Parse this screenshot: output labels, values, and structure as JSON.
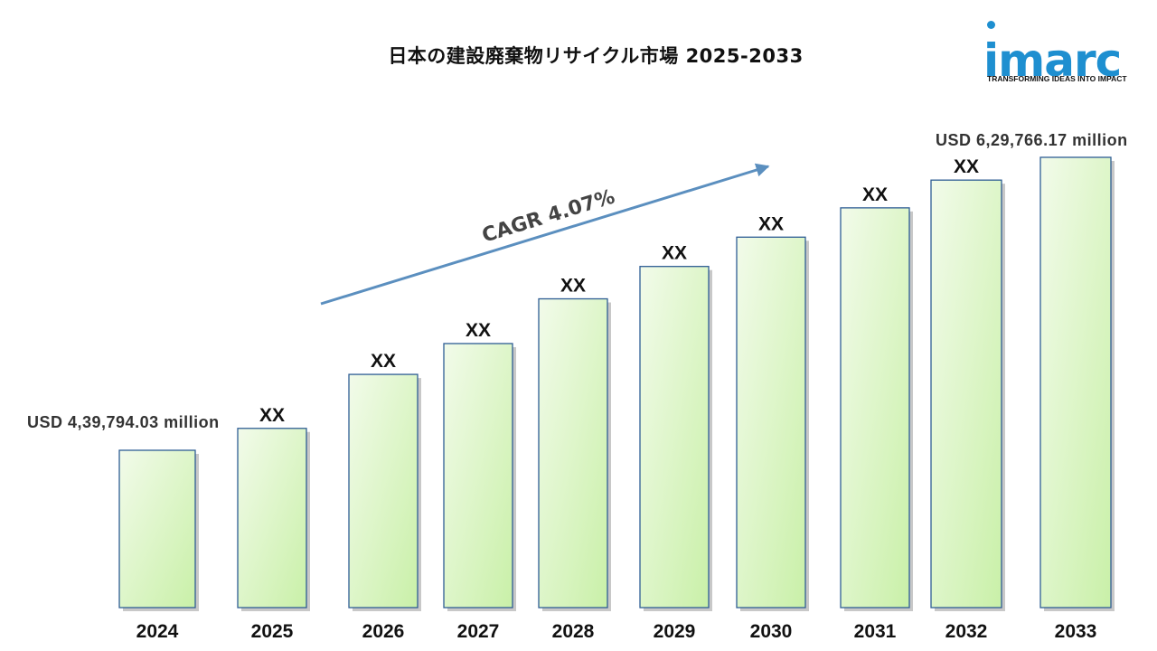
{
  "title": "日本の建設廃棄物リサイクル市場  2025-2033",
  "logo": {
    "name": "imarc",
    "tagline": "TRANSFORMING IDEAS INTO IMPACT",
    "color": "#1e8fd0"
  },
  "chart_data": {
    "type": "bar",
    "title": "日本の建設廃棄物リサイクル市場  2025-2033",
    "categories": [
      "2024",
      "2025",
      "2026",
      "2027",
      "2028",
      "2029",
      "2030",
      "2031",
      "2032",
      "2033"
    ],
    "values": [
      439794.03,
      454000,
      489000,
      509000,
      538000,
      559000,
      578000,
      597000,
      615000,
      629766.17
    ],
    "bar_labels": [
      "",
      "XX",
      "XX",
      "XX",
      "XX",
      "XX",
      "XX",
      "XX",
      "XX",
      ""
    ],
    "start_annotation": "USD  4,39,794.03 million",
    "end_annotation": "USD  6,29,766.17 million",
    "cagr_label": "CAGR   4.07%",
    "unit": "USD million",
    "bar_fill_top": "#f2fbea",
    "bar_fill_bottom": "#c9f0a8",
    "bar_border": "#2e5d94",
    "arrow_color": "#5b8fbf",
    "grid": false,
    "legend": "none"
  }
}
